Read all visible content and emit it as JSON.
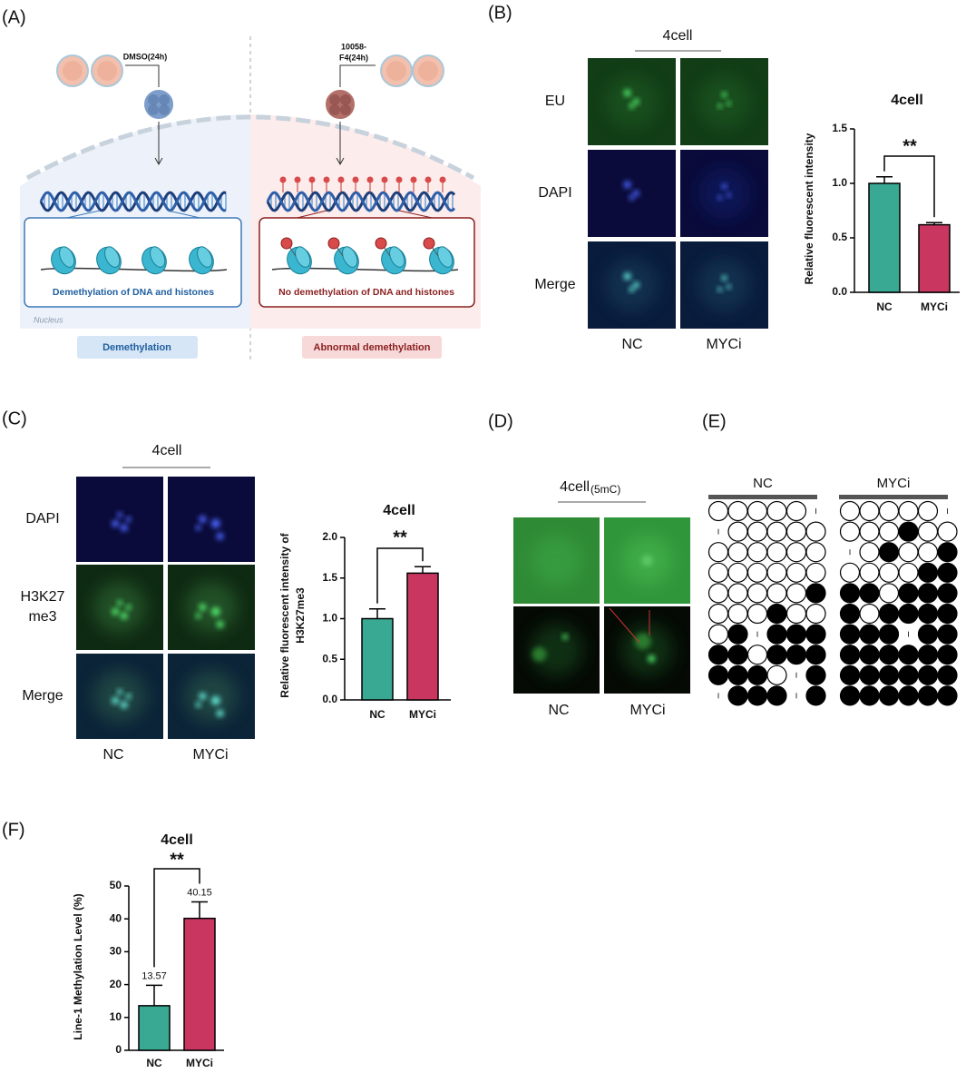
{
  "panel_labels": [
    "(A)",
    "(B)",
    "(C)",
    "(D)",
    "(E)",
    "(F)"
  ],
  "panel_a": {
    "left_treatment": "DMSO(24h)",
    "right_treatment": [
      "10058-",
      "F4(24h)"
    ],
    "left_box_text": "Demethylation of DNA and histones",
    "right_box_text": "No demethylation of DNA and histones",
    "nucleus": "Nucleus",
    "left_result": "Demethylation",
    "right_result": "Abnormal demethylation"
  },
  "panel_b": {
    "heading": "4cell",
    "rows": [
      "EU",
      "DAPI",
      "Merge"
    ],
    "columns": [
      "NC",
      "MYCi"
    ]
  },
  "panel_c": {
    "heading": "4cell",
    "rows": [
      [
        "DAPI"
      ],
      [
        "H3K27",
        "me3"
      ],
      [
        "Merge"
      ]
    ],
    "columns": [
      "NC",
      "MYCi"
    ]
  },
  "panel_d": {
    "heading": "4cell",
    "heading_sub": "(5mC)",
    "columns": [
      "NC",
      "MYCi"
    ]
  },
  "panel_e": {
    "groups": [
      {
        "name": "NC",
        "rows": [
          [
            0,
            0,
            0,
            0,
            0,
            null
          ],
          [
            null,
            0,
            0,
            0,
            0,
            0
          ],
          [
            0,
            0,
            0,
            0,
            0,
            0
          ],
          [
            0,
            0,
            0,
            0,
            0,
            0
          ],
          [
            0,
            0,
            0,
            0,
            0,
            1
          ],
          [
            0,
            0,
            0,
            1,
            0,
            0
          ],
          [
            0,
            1,
            null,
            1,
            1,
            1
          ],
          [
            1,
            1,
            0,
            1,
            1,
            1
          ],
          [
            1,
            1,
            1,
            0,
            null,
            1
          ],
          [
            null,
            1,
            1,
            1,
            null,
            1
          ]
        ]
      },
      {
        "name": "MYCi",
        "rows": [
          [
            0,
            0,
            0,
            0,
            0,
            null
          ],
          [
            0,
            0,
            0,
            1,
            0,
            0
          ],
          [
            null,
            0,
            1,
            0,
            0,
            1
          ],
          [
            0,
            0,
            0,
            0,
            1,
            1
          ],
          [
            1,
            1,
            0,
            1,
            1,
            1
          ],
          [
            1,
            0,
            1,
            1,
            1,
            1
          ],
          [
            1,
            1,
            1,
            null,
            1,
            1
          ],
          [
            1,
            1,
            1,
            1,
            1,
            1
          ],
          [
            1,
            1,
            1,
            1,
            1,
            1
          ],
          [
            1,
            1,
            1,
            1,
            1,
            1
          ]
        ]
      }
    ]
  },
  "chart_data": [
    {
      "type": "bar",
      "title": "4cell",
      "y_label": [
        "Relative fluorescent intensity"
      ],
      "categories": [
        "NC",
        "MYCi"
      ],
      "values": [
        1.0,
        0.62
      ],
      "errors": [
        0.06,
        0.02
      ],
      "colors": [
        "#3aa993",
        "#c93761"
      ],
      "ylim": [
        0,
        1.5
      ],
      "yticks": [
        {
          "value": 0,
          "label": "0.0"
        },
        {
          "value": 0.5,
          "label": "0.5"
        },
        {
          "value": 1,
          "label": "1.0"
        },
        {
          "value": 1.5,
          "label": "1.5"
        }
      ],
      "significance": "**"
    },
    {
      "type": "bar",
      "title": "4cell",
      "y_label": [
        "Relative fluorescent intensity of",
        "H3K27me3"
      ],
      "categories": [
        "NC",
        "MYCi"
      ],
      "values": [
        1.0,
        1.56
      ],
      "errors": [
        0.12,
        0.08
      ],
      "colors": [
        "#3aa993",
        "#c93761"
      ],
      "ylim": [
        0,
        2
      ],
      "yticks": [
        {
          "value": 0,
          "label": "0.0"
        },
        {
          "value": 0.5,
          "label": "0.5"
        },
        {
          "value": 1,
          "label": "1.0"
        },
        {
          "value": 1.5,
          "label": "1.5"
        },
        {
          "value": 2,
          "label": "2.0"
        }
      ],
      "significance": "**"
    },
    {
      "type": "bar",
      "title": "4cell",
      "y_label": [
        "Line-1 Methylation Level (%)"
      ],
      "categories": [
        "NC",
        "MYCi"
      ],
      "values": [
        13.57,
        40.15
      ],
      "errors": [
        6.2,
        5.0
      ],
      "colors": [
        "#3aa993",
        "#c93761"
      ],
      "ylim": [
        0,
        50
      ],
      "yticks": [
        0,
        10,
        20,
        30,
        40,
        50
      ],
      "significance": "**",
      "show_value_labels": true
    }
  ]
}
